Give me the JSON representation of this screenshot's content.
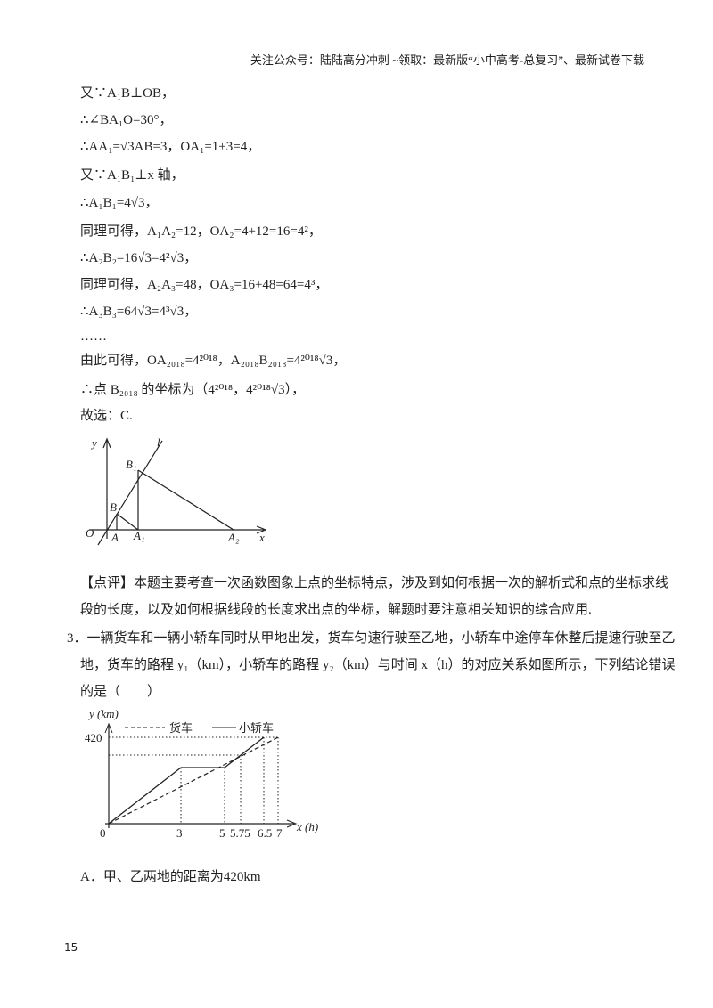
{
  "header": "关注公众号：陆陆高分冲刺 ~领取：最新版“小中高考-总复习”、最新试卷下载",
  "solution_lines": [
    "又∵A₁B⊥OB，",
    "∴∠BA₁O=30°，",
    "∴AA₁=√3AB=3，OA₁=1+3=4，",
    "又∵A₁B₁⊥x 轴，",
    "∴A₁B₁=4√3，",
    "同理可得，A₁A₂=12，OA₂=4+12=16=4²，",
    "∴A₂B₂=16√3=4²√3，",
    "同理可得，A₂A₃=48，OA₃=16+48=64=4³，",
    "∴A₃B₃=64√3=4³√3，",
    "……",
    "由此可得，OA₂₀₁₈=4²⁰¹⁸，A₂₀₁₈B₂₀₁₈=4²⁰¹⁸√3，",
    "∴点 B₂₀₁₈ 的坐标为（4²⁰¹⁸，4²⁰¹⁸√3），",
    "故选：C."
  ],
  "figure1": {
    "labels": [
      "y",
      "l",
      "B₁",
      "B",
      "O",
      "A",
      "A₁",
      "A₂",
      "x"
    ]
  },
  "comment_lines": [
    "【点评】本题主要考查一次函数图象上点的坐标特点，涉及到如何根据一次的解析式和点的坐标求线",
    "段的长度，以及如何根据线段的长度求出点的坐标，解题时要注意相关知识的综合应用."
  ],
  "question_lines": [
    "3．一辆货车和一辆小轿车同时从甲地出发，货车匀速行驶至乙地，小轿车中途停车休整后提速行驶至乙",
    "地，货车的路程 y₁（km），小轿车的路程 y₂（km）与时间 x（h）的对应关系如图所示，下列结论错误",
    "的是（　　）"
  ],
  "figure2": {
    "y_label": "y (km)",
    "x_label": "x (h)",
    "legend": [
      "货车",
      "小轿车"
    ],
    "y_tick": "420",
    "origin": "0",
    "x_ticks": [
      "3",
      "5",
      "5.75",
      "6.5",
      "7"
    ]
  },
  "option_a": "A．甲、乙两地的距离为420km",
  "page_number": "15"
}
